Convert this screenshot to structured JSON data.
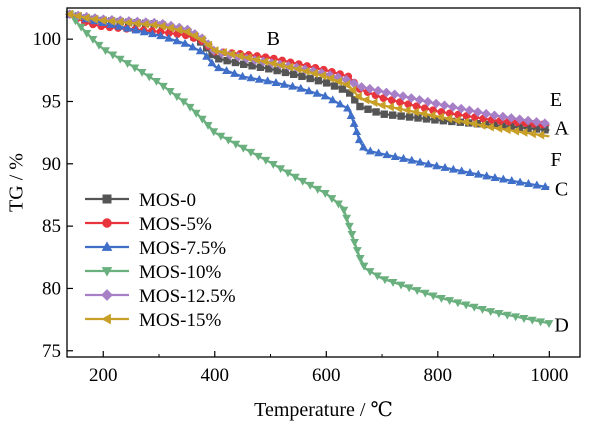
{
  "chart_data": {
    "type": "line",
    "xlabel": "Temperature / ℃",
    "ylabel": "TG / %",
    "xlim": [
      135,
      1055
    ],
    "ylim": [
      74.5,
      102.5
    ],
    "xticks": [
      200,
      400,
      600,
      800,
      1000
    ],
    "yticks": [
      75,
      80,
      85,
      90,
      95,
      100
    ],
    "grid": false,
    "legend_position": "left",
    "series": [
      {
        "name": "MOS-0",
        "color": "#555555",
        "marker": "square",
        "x": [
          140,
          170,
          200,
          300,
          350,
          380,
          400,
          450,
          500,
          550,
          600,
          640,
          660,
          700,
          800,
          900,
          1000
        ],
        "y": [
          102,
          101.7,
          101.5,
          101.2,
          100.6,
          99.6,
          98.5,
          98.0,
          97.6,
          97.1,
          96.5,
          95.8,
          94.6,
          94.0,
          93.5,
          93.1,
          92.7
        ]
      },
      {
        "name": "MOS-5%",
        "color": "#e8343c",
        "marker": "circle",
        "x": [
          140,
          170,
          200,
          300,
          350,
          380,
          400,
          450,
          500,
          550,
          600,
          640,
          660,
          700,
          800,
          900,
          1000
        ],
        "y": [
          102,
          101.3,
          101.0,
          100.6,
          100.3,
          99.8,
          99.0,
          98.8,
          98.5,
          98.0,
          97.5,
          97.0,
          96.0,
          95.3,
          94.2,
          93.5,
          93.1
        ]
      },
      {
        "name": "MOS-7.5%",
        "color": "#3f6fc8",
        "marker": "triangle-up",
        "x": [
          140,
          170,
          200,
          300,
          350,
          380,
          400,
          450,
          500,
          550,
          600,
          640,
          650,
          660,
          670,
          700,
          800,
          900,
          1000
        ],
        "y": [
          102,
          101.6,
          101.3,
          100.3,
          99.6,
          98.9,
          97.8,
          97.0,
          96.6,
          96.1,
          95.4,
          94.4,
          93.2,
          91.8,
          91.1,
          90.8,
          89.8,
          88.9,
          88.1
        ]
      },
      {
        "name": "MOS-10%",
        "color": "#6ab07e",
        "marker": "triangle-down",
        "x": [
          140,
          170,
          200,
          250,
          300,
          350,
          380,
          400,
          450,
          500,
          550,
          600,
          630,
          640,
          650,
          660,
          670,
          700,
          800,
          900,
          1000
        ],
        "y": [
          102,
          100.5,
          99.2,
          97.9,
          96.5,
          94.8,
          93.5,
          92.5,
          91.3,
          90.1,
          88.8,
          87.6,
          86.5,
          85.2,
          83.8,
          82.5,
          81.6,
          80.8,
          79.3,
          78.1,
          77.2
        ]
      },
      {
        "name": "MOS-12.5%",
        "color": "#a77fc7",
        "marker": "diamond",
        "x": [
          140,
          170,
          200,
          300,
          350,
          380,
          400,
          450,
          500,
          550,
          600,
          640,
          660,
          700,
          800,
          900,
          1000
        ],
        "y": [
          102,
          101.8,
          101.6,
          101.3,
          100.8,
          100.0,
          99.0,
          98.5,
          98.1,
          97.7,
          97.2,
          96.7,
          96.2,
          95.8,
          94.8,
          93.9,
          93.2
        ]
      },
      {
        "name": "MOS-15%",
        "color": "#c8a028",
        "marker": "triangle-left",
        "x": [
          140,
          170,
          200,
          300,
          350,
          380,
          400,
          450,
          500,
          550,
          600,
          640,
          660,
          700,
          800,
          900,
          1000
        ],
        "y": [
          102,
          101.7,
          101.5,
          101.1,
          100.6,
          99.9,
          99.1,
          98.6,
          98.1,
          97.6,
          97.0,
          96.3,
          95.3,
          94.7,
          93.8,
          92.9,
          92.2
        ]
      }
    ],
    "annotations": [
      {
        "text": "B",
        "x": 505,
        "y": 100.1
      },
      {
        "text": "E",
        "x": 1012,
        "y": 95.2
      },
      {
        "text": "A",
        "x": 1022,
        "y": 92.9
      },
      {
        "text": "F",
        "x": 1012,
        "y": 90.4
      },
      {
        "text": "C",
        "x": 1022,
        "y": 88.0
      },
      {
        "text": "D",
        "x": 1022,
        "y": 77.1
      }
    ]
  }
}
